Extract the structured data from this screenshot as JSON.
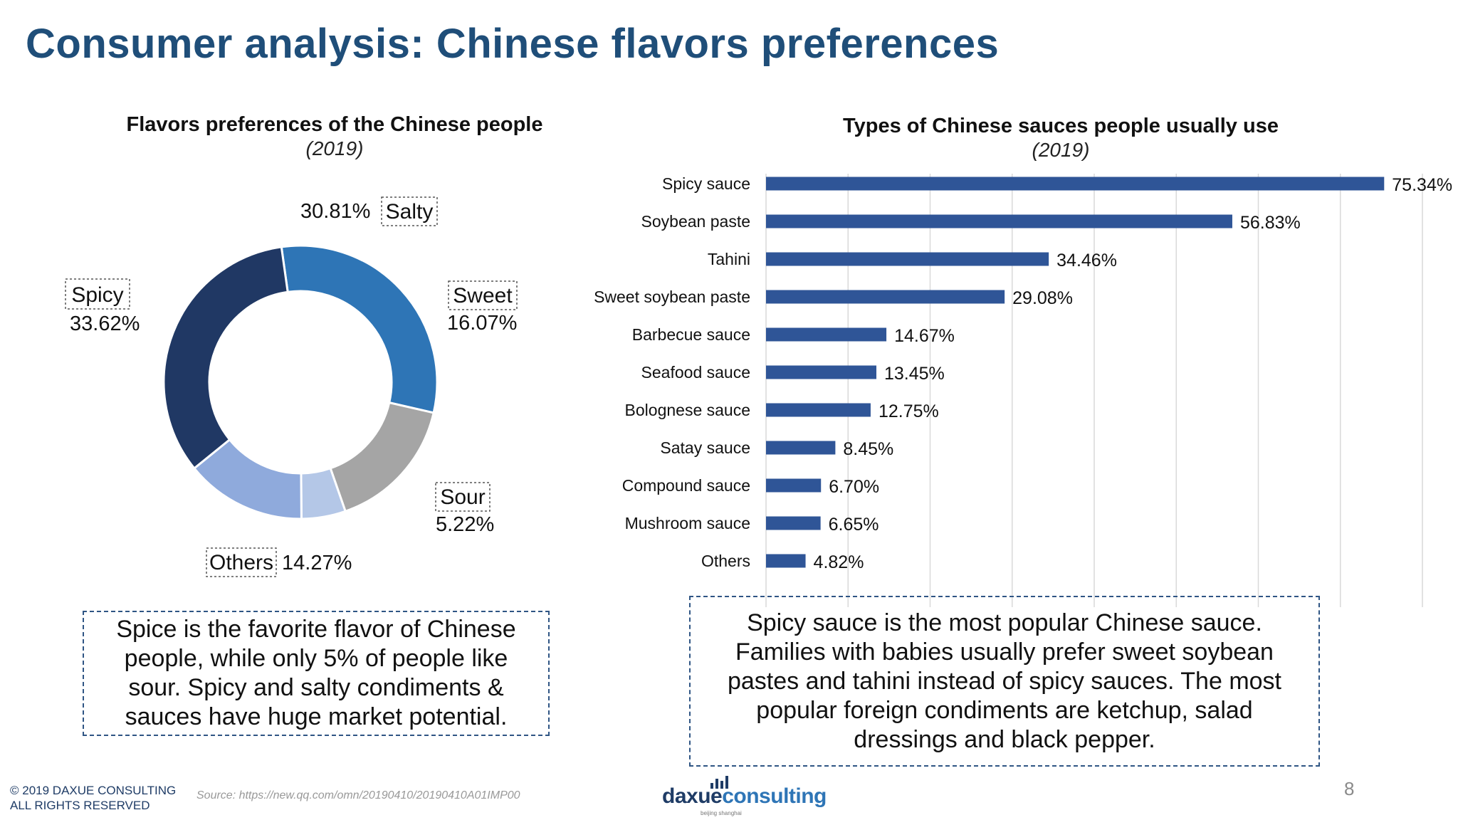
{
  "page": {
    "title": "Consumer analysis: Chinese flavors preferences",
    "page_number": "8",
    "copyright_line1": "© 2019 DAXUE CONSULTING",
    "copyright_line2": "ALL RIGHTS RESERVED",
    "source": "Source: https://new.qq.com/omn/20190410/20190410A01IMP00",
    "logo_text_a": "daxue",
    "logo_text_b": "consulting",
    "logo_tagline": "beijing shanghai"
  },
  "callouts": {
    "left": "Spice is the favorite flavor of Chinese people, while only 5% of people like sour. Spicy and salty condiments & sauces have huge market potential.",
    "right": "Spicy sauce is the most popular Chinese sauce. Families with babies usually prefer sweet soybean pastes and tahini instead of spicy sauces. The most popular foreign condiments are ketchup, salad dressings and black pepper."
  },
  "chart_data": [
    {
      "type": "pie",
      "donut": true,
      "title": "Flavors preferences of the Chinese people",
      "subtitle": "(2019)",
      "start": "top, clockwise from Salty",
      "slices": [
        {
          "label": "Salty",
          "value": 30.81,
          "value_label": "30.81%",
          "color": "#2e75b6"
        },
        {
          "label": "Sweet",
          "value": 16.07,
          "value_label": "16.07%",
          "color": "#a5a5a5"
        },
        {
          "label": "Sour",
          "value": 5.22,
          "value_label": "5.22%",
          "color": "#b4c7e7"
        },
        {
          "label": "Others",
          "value": 14.27,
          "value_label": "14.27%",
          "color": "#8faadc"
        },
        {
          "label": "Spicy",
          "value": 33.62,
          "value_label": "33.62%",
          "color": "#203864"
        }
      ]
    },
    {
      "type": "bar",
      "orientation": "horizontal",
      "title": "Types of Chinese sauces people usually use",
      "subtitle": "(2019)",
      "bar_color": "#2f5597",
      "grid": true,
      "xlim": [
        0,
        80
      ],
      "categories": [
        "Spicy sauce",
        "Soybean paste",
        "Tahini",
        "Sweet soybean paste",
        "Barbecue sauce",
        "Seafood sauce",
        "Bolognese sauce",
        "Satay sauce",
        "Compound sauce",
        "Mushroom sauce",
        "Others"
      ],
      "values": [
        75.34,
        56.83,
        34.46,
        29.08,
        14.67,
        13.45,
        12.75,
        8.45,
        6.7,
        6.65,
        4.82
      ],
      "value_labels": [
        "75.34%",
        "56.83%",
        "34.46%",
        "29.08%",
        "14.67%",
        "13.45%",
        "12.75%",
        "8.45%",
        "6.70%",
        "6.65%",
        "4.82%"
      ]
    }
  ]
}
